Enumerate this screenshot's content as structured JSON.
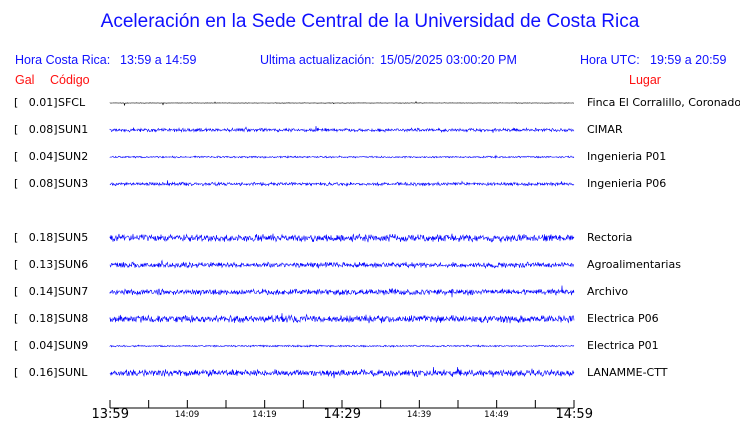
{
  "title": "Aceleración en la Sede Central de la Universidad de Costa Rica",
  "header": {
    "local_label": "Hora Costa Rica:",
    "local_range": "13:59 a 14:59",
    "update_label": "Ultima actualización:",
    "update_value": "15/05/2025 03:00:20 PM",
    "utc_label": "Hora UTC:",
    "utc_range": "19:59 a 20:59"
  },
  "columns": {
    "gal": "Gal",
    "code": "Código",
    "place": "Lugar"
  },
  "stations": [
    {
      "gal": "[   0.01]",
      "code": "SFCL",
      "place": "Finca El Corralillo, Coronado",
      "color": "#000000"
    },
    {
      "gal": "[   0.08]",
      "code": "SUN1",
      "place": "CIMAR",
      "color": "#0000ff"
    },
    {
      "gal": "[   0.04]",
      "code": "SUN2",
      "place": "Ingenieria P01",
      "color": "#0000ff"
    },
    {
      "gal": "[   0.08]",
      "code": "SUN3",
      "place": "Ingenieria P06",
      "color": "#0000ff"
    },
    {
      "gal": "[   0.18]",
      "code": "SUN5",
      "place": "Rectoria",
      "color": "#0000ff"
    },
    {
      "gal": "[   0.13]",
      "code": "SUN6",
      "place": "Agroalimentarias",
      "color": "#0000ff"
    },
    {
      "gal": "[   0.14]",
      "code": "SUN7",
      "place": "Archivo",
      "color": "#0000ff"
    },
    {
      "gal": "[   0.18]",
      "code": "SUN8",
      "place": "Electrica P06",
      "color": "#0000ff"
    },
    {
      "gal": "[   0.04]",
      "code": "SUN9",
      "place": "Electrica P01",
      "color": "#0000ff"
    },
    {
      "gal": "[   0.16]",
      "code": "SUNL",
      "place": "LANAMME-CTT",
      "color": "#0000ff"
    }
  ],
  "time_axis": {
    "major": [
      "13:59",
      "14:29",
      "14:59"
    ],
    "minor": [
      "14:09",
      "14:19",
      "14:39",
      "14:49"
    ]
  }
}
